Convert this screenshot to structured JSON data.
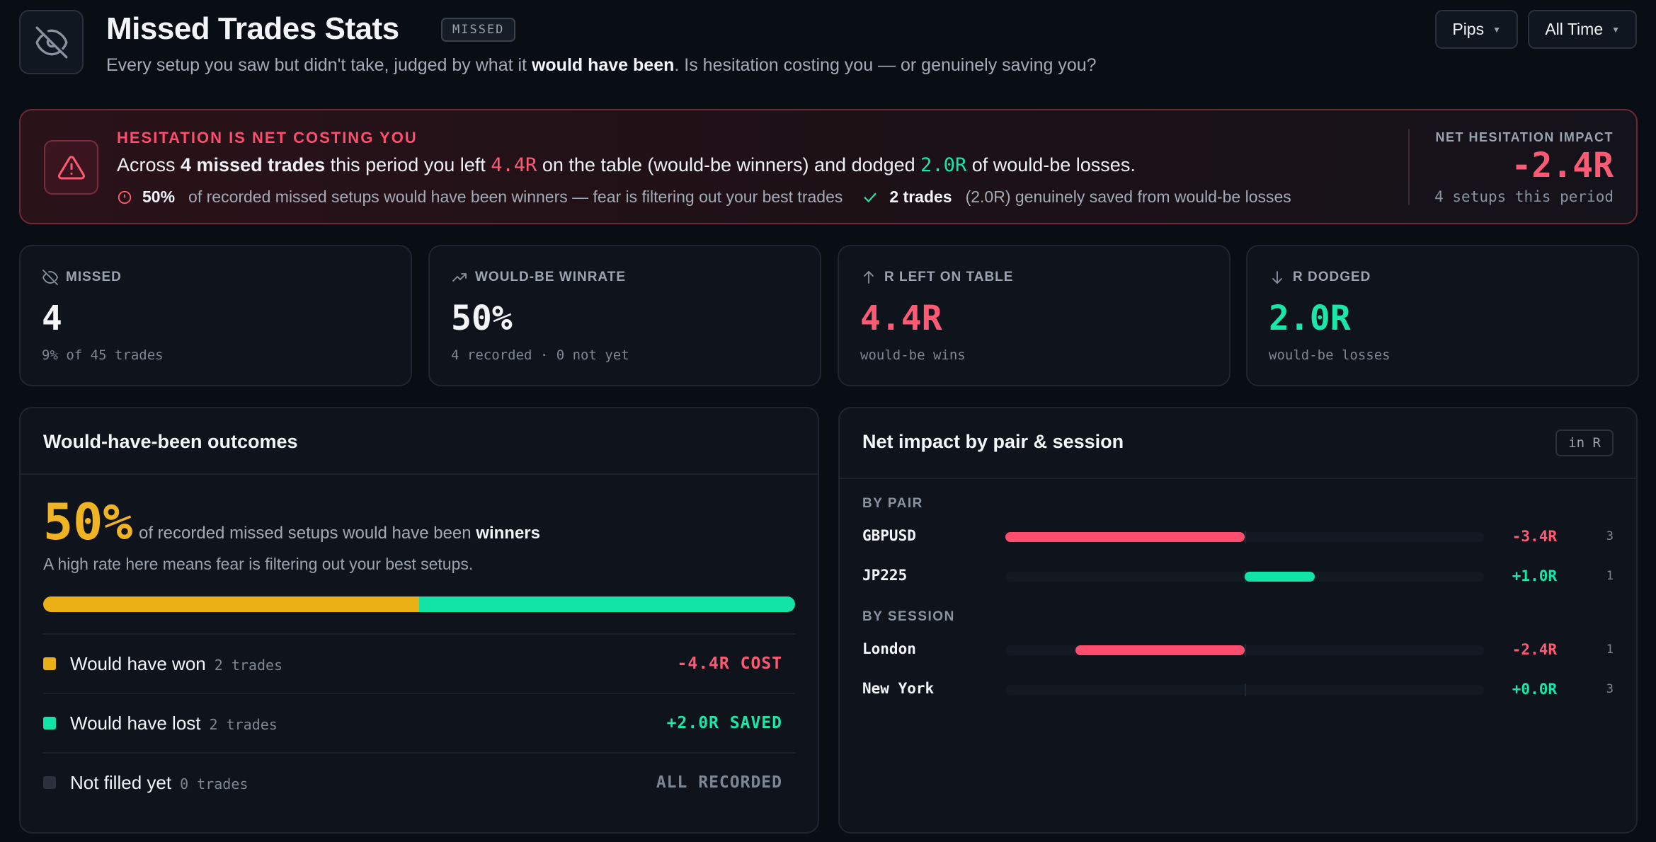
{
  "header": {
    "title": "Missed Trades Stats",
    "tag": "MISSED",
    "subtitle_pre": "Every setup you saw but didn't take, judged by what it ",
    "subtitle_bold": "would have been",
    "subtitle_post": ". Is hesitation costing you — or genuinely saving you?",
    "unit_select": "Pips",
    "period_select": "All Time"
  },
  "alert": {
    "kicker": "HESITATION IS NET COSTING YOU",
    "main_a": "Across ",
    "main_b": "4 missed trades",
    "main_c": " this period you left ",
    "main_d": "4.4R",
    "main_e": " on the table (would-be winners) and dodged ",
    "main_f": "2.0R",
    "main_g": " of would-be losses.",
    "stat1_value": "50%",
    "stat1_text": "of recorded missed setups would have been winners — fear is filtering out your best trades",
    "stat2_value": "2 trades",
    "stat2_text": "(2.0R) genuinely saved from would-be losses",
    "impact_label": "NET HESITATION IMPACT",
    "impact_value": "-2.4R",
    "impact_sub": "4 setups this period"
  },
  "stats": [
    {
      "label": "MISSED",
      "value": "4",
      "sub": "9% of 45 trades",
      "color": "#f3f5f8",
      "icon": "eye-off-icon"
    },
    {
      "label": "WOULD-BE WINRATE",
      "value": "50%",
      "sub": "4 recorded · 0 not yet",
      "color": "#f3f5f8",
      "icon": "trend-up-icon"
    },
    {
      "label": "R LEFT ON TABLE",
      "value": "4.4R",
      "sub": "would-be wins",
      "color": "#ff5a74",
      "icon": "arrow-up-icon"
    },
    {
      "label": "R DODGED",
      "value": "2.0R",
      "sub": "would-be losses",
      "color": "#19e6a8",
      "icon": "arrow-down-icon"
    }
  ],
  "outcomes": {
    "title": "Would-have-been outcomes",
    "pct": "50%",
    "pct_text": "of recorded missed setups would have been ",
    "pct_bold": "winners",
    "note": "A high rate here means fear is filtering out your best setups.",
    "won_fraction": 0.5,
    "rows": [
      {
        "label": "Would have won",
        "count": "2 trades",
        "result": "-4.4R COST",
        "color": "#eab015",
        "result_color": "#ff5a74"
      },
      {
        "label": "Would have lost",
        "count": "2 trades",
        "result": "+2.0R SAVED",
        "color": "#12e3a6",
        "result_color": "#19e6a8"
      },
      {
        "label": "Not filled yet",
        "count": "0 trades",
        "result": "ALL RECORDED",
        "color": "#2a313c",
        "result_color": "#7d8693"
      }
    ]
  },
  "impact": {
    "title": "Net impact by pair & session",
    "unit_tag": "in R",
    "pair_label": "BY PAIR",
    "session_label": "BY SESSION",
    "scale_max": 3.4,
    "pairs": [
      {
        "name": "GBPUSD",
        "value": -3.4,
        "display": "-3.4R",
        "count": "3"
      },
      {
        "name": "JP225",
        "value": 1.0,
        "display": "+1.0R",
        "count": "1"
      }
    ],
    "sessions": [
      {
        "name": "London",
        "value": -2.4,
        "display": "-2.4R",
        "count": "1"
      },
      {
        "name": "New York",
        "value": 0.0,
        "display": "+0.0R",
        "count": "3"
      }
    ]
  }
}
